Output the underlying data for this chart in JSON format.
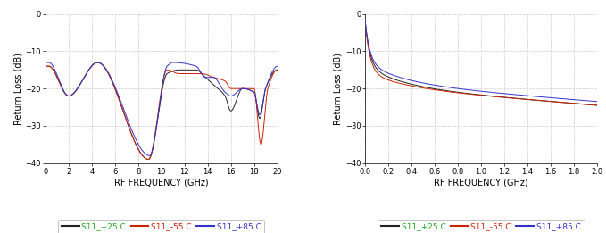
{
  "left_chart": {
    "xlabel": "RF FREQUENCY (GHz)",
    "ylabel": "Return Loss (dB)",
    "xlim": [
      0,
      20
    ],
    "ylim": [
      -40,
      0
    ],
    "xticks": [
      0,
      2,
      4,
      6,
      8,
      10,
      12,
      14,
      16,
      18,
      20
    ],
    "yticks": [
      -40,
      -30,
      -20,
      -10,
      0
    ],
    "grid_color": "#cccccc"
  },
  "right_chart": {
    "xlabel": "RF FREQUENCY (GHz)",
    "ylabel": "Return Loss (dB)",
    "xlim": [
      0.0,
      2.0
    ],
    "ylim": [
      -40,
      0
    ],
    "xticks": [
      0.0,
      0.2,
      0.4,
      0.6,
      0.8,
      1.0,
      1.2,
      1.4,
      1.6,
      1.8,
      2.0
    ],
    "yticks": [
      -40,
      -30,
      -20,
      -10,
      0
    ],
    "grid_color": "#cccccc"
  },
  "legend": [
    "S11_+25 C",
    "S11_-55 C",
    "S11_+85 C"
  ],
  "line_colors": [
    "#222222",
    "#cc2200",
    "#3333cc"
  ],
  "legend_text_colors": [
    "#22aa22",
    "#cc2200",
    "#3333cc"
  ],
  "background_color": "#ffffff"
}
